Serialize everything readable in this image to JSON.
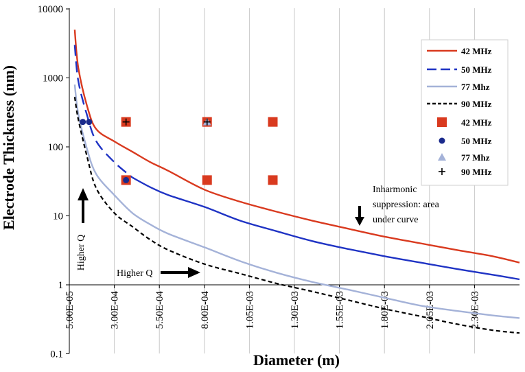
{
  "chart_data": {
    "type": "line",
    "title": "",
    "xlabel": "Diameter (m)",
    "ylabel": "Electrode Thickness (nm)",
    "x_scale": "linear",
    "y_scale": "log",
    "xlim": [
      5e-05,
      0.00255
    ],
    "ylim": [
      0.1,
      10000
    ],
    "x_ticks": [
      5e-05,
      0.0003,
      0.00055,
      0.0008,
      0.00105,
      0.0013,
      0.00155,
      0.0018,
      0.00205,
      0.0023
    ],
    "x_tick_labels": [
      "5.00E-05",
      "3.00E-04",
      "5.50E-04",
      "8.00E-04",
      "1.05E-03",
      "1.30E-03",
      "1.55E-03",
      "1.80E-03",
      "2.05E-03",
      "2.30E-03"
    ],
    "y_ticks": [
      0.1,
      1,
      10,
      100,
      1000,
      10000
    ],
    "y_tick_labels": [
      "0.1",
      "1",
      "10",
      "100",
      "1000",
      "10000"
    ],
    "grid": "vertical",
    "series": [
      {
        "name": "42 MHz",
        "kind": "line",
        "style": "solid",
        "color": "#d93a1f",
        "x": [
          8e-05,
          0.0001,
          0.00015,
          0.0002,
          0.0003,
          0.0004,
          0.0005,
          0.0006,
          0.0008,
          0.001,
          0.0012,
          0.0014,
          0.0016,
          0.0018,
          0.002,
          0.0022,
          0.0024,
          0.00255
        ],
        "y": [
          5000,
          1400,
          380,
          180,
          120,
          85,
          60,
          45,
          24,
          16,
          11.5,
          8.5,
          6.5,
          5,
          4,
          3.2,
          2.6,
          2.1
        ]
      },
      {
        "name": "50 MHz",
        "kind": "line",
        "style": "mixed",
        "color": "#1f33c4",
        "x": [
          8e-05,
          0.0001,
          0.00015,
          0.0002,
          0.0003,
          0.0004,
          0.0005,
          0.0006,
          0.0008,
          0.001,
          0.0012,
          0.0014,
          0.0016,
          0.0018,
          0.002,
          0.0022,
          0.0024,
          0.00255
        ],
        "y": [
          3000,
          900,
          280,
          120,
          60,
          36,
          26,
          20,
          13.5,
          8.5,
          6,
          4.3,
          3.3,
          2.6,
          2.1,
          1.7,
          1.4,
          1.2
        ]
      },
      {
        "name": "77 Mhz",
        "kind": "line",
        "style": "solid",
        "color": "#a4b2d8",
        "x": [
          8e-05,
          0.0001,
          0.00015,
          0.0002,
          0.0003,
          0.0004,
          0.0005,
          0.0006,
          0.0008,
          0.001,
          0.0012,
          0.0014,
          0.0016,
          0.0018,
          0.002,
          0.0022,
          0.0024,
          0.00255
        ],
        "y": [
          800,
          300,
          90,
          40,
          20,
          11,
          7.5,
          5.5,
          3.5,
          2.2,
          1.5,
          1.1,
          0.85,
          0.65,
          0.5,
          0.42,
          0.36,
          0.33
        ]
      },
      {
        "name": "90 MHz",
        "kind": "line",
        "style": "dashed",
        "color": "#000000",
        "x": [
          8e-05,
          0.0001,
          0.00015,
          0.0002,
          0.0003,
          0.0004,
          0.0005,
          0.0006,
          0.0008,
          0.001,
          0.0012,
          0.0014,
          0.0016,
          0.0018,
          0.002,
          0.0022,
          0.0024,
          0.00255
        ],
        "y": [
          530,
          250,
          70,
          25,
          11,
          7,
          4.5,
          3.2,
          2,
          1.45,
          1.05,
          0.8,
          0.6,
          0.45,
          0.35,
          0.27,
          0.22,
          0.2
        ]
      },
      {
        "name": "42 MHz",
        "kind": "points",
        "marker": "square",
        "color": "#d93a1f",
        "x": [
          0.000365,
          0.000365,
          0.000815,
          0.000815,
          0.00118,
          0.00118
        ],
        "y": [
          230,
          33,
          230,
          33,
          230,
          33
        ]
      },
      {
        "name": "50 MHz",
        "kind": "points",
        "marker": "circle",
        "color": "#1a2a8c",
        "x": [
          0.000125,
          0.00016,
          0.000365
        ],
        "y": [
          230,
          230,
          33
        ]
      },
      {
        "name": "77 Mhz",
        "kind": "points",
        "marker": "triangle",
        "color": "#a4b2d8",
        "x": [
          0.000815
        ],
        "y": [
          230
        ]
      },
      {
        "name": "90 MHz",
        "kind": "points",
        "marker": "plus",
        "color": "#000000",
        "x": [
          0.000365,
          0.000815
        ],
        "y": [
          230,
          230
        ]
      }
    ],
    "annotations": [
      {
        "text": "Inharmonic",
        "arrow": "down"
      },
      {
        "text": "suppression: area"
      },
      {
        "text": "under curve"
      },
      {
        "text": "Higher Q",
        "arrow": "up",
        "rotated": true
      },
      {
        "text": "Higher Q",
        "arrow": "right"
      }
    ]
  }
}
